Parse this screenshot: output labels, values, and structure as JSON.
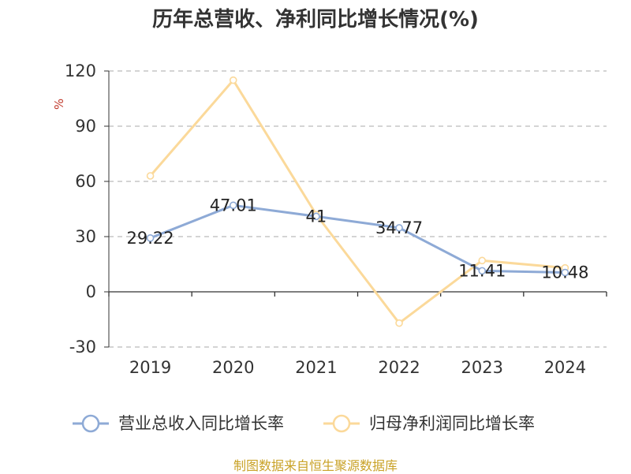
{
  "colors": {
    "revenue": "#8eaad6",
    "profit": "#fbd99a",
    "unit": "#c0392b",
    "source": "#c9a227",
    "grid": "#bbbbbb",
    "axis": "#333333"
  },
  "footer": {
    "source": "制图数据来自恒生聚源数据库"
  },
  "chart_data": {
    "type": "line",
    "title": "历年总营收、净利同比增长情况(%)",
    "ylabel": "%",
    "xlabel": "",
    "categories": [
      "2019",
      "2020",
      "2021",
      "2022",
      "2023",
      "2024"
    ],
    "ylim": [
      -30,
      120
    ],
    "yticks": [
      120,
      90,
      60,
      30,
      0,
      -30
    ],
    "grid": "horizontal-dashed",
    "legend_position": "bottom",
    "series": [
      {
        "name": "营业总收入同比增长率",
        "values": [
          29.22,
          47.01,
          41,
          34.77,
          11.41,
          10.48
        ],
        "labels": [
          "29.22",
          "47.01",
          "41",
          "34.77",
          "11.41",
          "10.48"
        ]
      },
      {
        "name": "归母净利润同比增长率",
        "values": [
          63,
          115,
          42,
          -17,
          17,
          13
        ]
      }
    ]
  }
}
